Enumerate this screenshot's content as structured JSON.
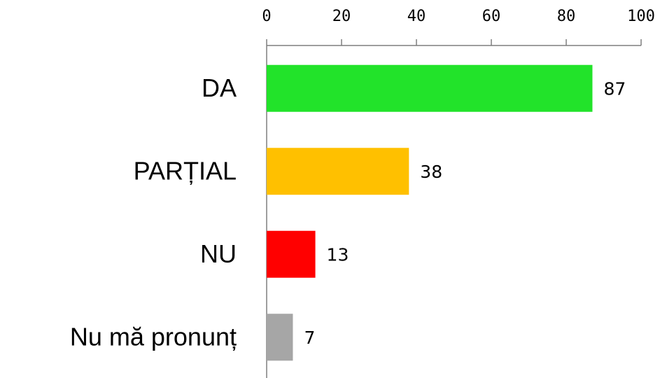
{
  "chart_data": {
    "type": "barh",
    "categories": [
      "DA",
      "PARȚIAL",
      "NU",
      "Nu mă pronunț"
    ],
    "values": [
      87,
      38,
      13,
      7
    ],
    "colors": [
      "#22e32a",
      "#ffc000",
      "#ff0000",
      "#a6a6a6"
    ],
    "xlim": [
      0,
      100
    ],
    "xticks": [
      0,
      20,
      40,
      60,
      80,
      100
    ],
    "grid": false
  }
}
